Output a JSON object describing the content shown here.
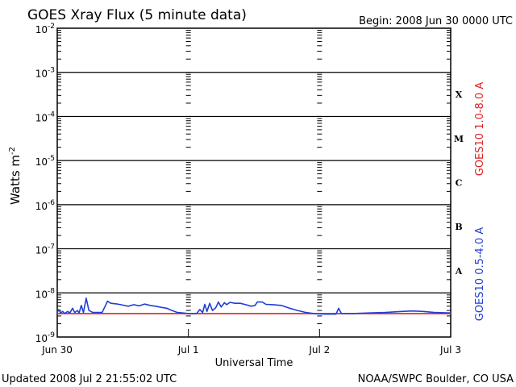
{
  "chart_data": {
    "type": "line",
    "title": "GOES Xray Flux (5 minute data)",
    "begin": "Begin:  2008 Jun 30 0000 UTC",
    "xlabel": "Universal Time",
    "ylabel": "Watts m",
    "ylabel_exp": "-2",
    "x_ticks": [
      "Jun 30",
      "Jul 1",
      "Jul 2",
      "Jul 3"
    ],
    "xlim": [
      0,
      72
    ],
    "y_scale": "log",
    "ylim": [
      1e-09,
      0.01
    ],
    "y_ticks": [
      {
        "base": "10",
        "exp": "-2"
      },
      {
        "base": "10",
        "exp": "-3"
      },
      {
        "base": "10",
        "exp": "-4"
      },
      {
        "base": "10",
        "exp": "-5"
      },
      {
        "base": "10",
        "exp": "-6"
      },
      {
        "base": "10",
        "exp": "-7"
      },
      {
        "base": "10",
        "exp": "-8"
      },
      {
        "base": "10",
        "exp": "-9"
      }
    ],
    "flare_classes": [
      "X",
      "M",
      "C",
      "B",
      "A"
    ],
    "series": [
      {
        "name": "GOES10 1.0-8.0 A",
        "color": "#dd2222",
        "points": [
          [
            0,
            3.4e-09
          ],
          [
            72,
            3.4e-09
          ]
        ]
      },
      {
        "name": "GOES10 0.5-4.0 A",
        "color": "#1f3fd8",
        "points": [
          [
            0,
            3.6e-09
          ],
          [
            0.3,
            4.2e-09
          ],
          [
            0.6,
            3.5e-09
          ],
          [
            1.0,
            3.8e-09
          ],
          [
            1.4,
            3.4e-09
          ],
          [
            1.9,
            3.8e-09
          ],
          [
            2.3,
            3.5e-09
          ],
          [
            2.8,
            4.5e-09
          ],
          [
            3.2,
            3.6e-09
          ],
          [
            3.7,
            4e-09
          ],
          [
            4.0,
            3.5e-09
          ],
          [
            4.4,
            5.2e-09
          ],
          [
            4.8,
            3.6e-09
          ],
          [
            5.3,
            7.6e-09
          ],
          [
            5.8,
            4e-09
          ],
          [
            6.5,
            3.6e-09
          ],
          [
            7.3,
            3.6e-09
          ],
          [
            8.2,
            3.6e-09
          ],
          [
            8.7,
            4.8e-09
          ],
          [
            9.2,
            6.5e-09
          ],
          [
            9.8,
            5.8e-09
          ],
          [
            11,
            5.6e-09
          ],
          [
            12,
            5.3e-09
          ],
          [
            13,
            5e-09
          ],
          [
            14,
            5.4e-09
          ],
          [
            15,
            5.1e-09
          ],
          [
            16,
            5.6e-09
          ],
          [
            17,
            5.2e-09
          ],
          [
            18,
            5e-09
          ],
          [
            19,
            4.7e-09
          ],
          [
            20,
            4.5e-09
          ],
          [
            21,
            4e-09
          ],
          [
            22,
            3.6e-09
          ],
          [
            23,
            3.5e-09
          ],
          [
            24,
            3.4e-09
          ],
          [
            25.5,
            3.4e-09
          ],
          [
            26.1,
            4.2e-09
          ],
          [
            26.6,
            3.6e-09
          ],
          [
            27.0,
            5.5e-09
          ],
          [
            27.4,
            3.8e-09
          ],
          [
            27.9,
            5.8e-09
          ],
          [
            28.4,
            4e-09
          ],
          [
            29.0,
            4.6e-09
          ],
          [
            29.5,
            6.2e-09
          ],
          [
            30.0,
            4.8e-09
          ],
          [
            30.6,
            6e-09
          ],
          [
            31.0,
            5.4e-09
          ],
          [
            31.6,
            6.1e-09
          ],
          [
            32.5,
            5.8e-09
          ],
          [
            33.5,
            5.8e-09
          ],
          [
            34.5,
            5.4e-09
          ],
          [
            35.5,
            5e-09
          ],
          [
            36.2,
            5.2e-09
          ],
          [
            36.6,
            6.2e-09
          ],
          [
            37.5,
            6.2e-09
          ],
          [
            38.2,
            5.5e-09
          ],
          [
            39.5,
            5.4e-09
          ],
          [
            41,
            5.2e-09
          ],
          [
            42.5,
            4.5e-09
          ],
          [
            44,
            4e-09
          ],
          [
            45.5,
            3.6e-09
          ],
          [
            47,
            3.4e-09
          ],
          [
            49,
            3.3e-09
          ],
          [
            51,
            3.3e-09
          ],
          [
            51.5,
            4.5e-09
          ],
          [
            52,
            3.4e-09
          ],
          [
            54,
            3.4e-09
          ],
          [
            57,
            3.5e-09
          ],
          [
            60,
            3.6e-09
          ],
          [
            63,
            3.8e-09
          ],
          [
            65,
            3.9e-09
          ],
          [
            67,
            3.8e-09
          ],
          [
            69,
            3.6e-09
          ],
          [
            72,
            3.5e-09
          ]
        ]
      }
    ]
  },
  "footer": {
    "updated": "Updated 2008 Jul  2 21:55:02 UTC",
    "credit": "NOAA/SWPC Boulder, CO USA"
  }
}
